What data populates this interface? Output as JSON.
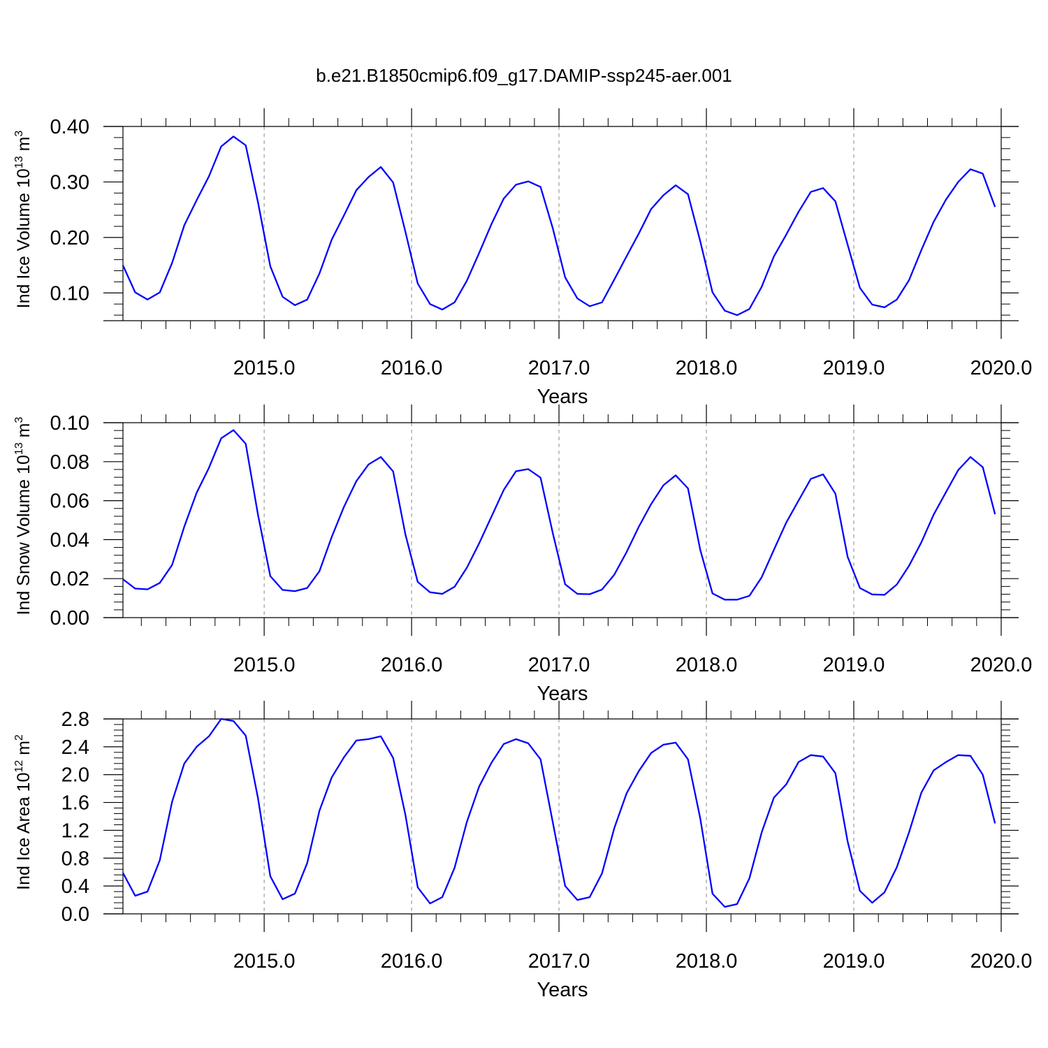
{
  "title": "b.e21.B1850cmip6.f09_g17.DAMIP-ssp245-aer.001",
  "chart_data": [
    {
      "type": "line",
      "title": "",
      "xlabel": "Years",
      "ylabel": "Ind Ice Volume 10",
      "ylabel_exp": "13",
      "ylabel_unit": " m",
      "ylabel_unit_exp": "3",
      "xlim": [
        2014.042,
        2020.0
      ],
      "ylim": [
        0.05,
        0.4
      ],
      "yticks": [
        "0.10",
        "0.20",
        "0.30",
        "0.40"
      ],
      "ytick_values": [
        0.1,
        0.2,
        0.3,
        0.4
      ],
      "xticks": [
        "2015.0",
        "2016.0",
        "2017.0",
        "2018.0",
        "2019.0",
        "2020.0"
      ],
      "xtick_values": [
        2015,
        2016,
        2017,
        2018,
        2019,
        2020
      ],
      "grid": "dashed vertical at years",
      "series": [
        {
          "color": "#0000ff",
          "y": [
            0.15,
            0.101,
            0.088,
            0.101,
            0.154,
            0.222,
            0.267,
            0.31,
            0.364,
            0.382,
            0.366,
            0.263,
            0.148,
            0.093,
            0.078,
            0.088,
            0.135,
            0.196,
            0.24,
            0.285,
            0.309,
            0.327,
            0.299,
            0.21,
            0.117,
            0.08,
            0.07,
            0.083,
            0.122,
            0.172,
            0.224,
            0.27,
            0.295,
            0.301,
            0.291,
            0.216,
            0.128,
            0.09,
            0.076,
            0.083,
            0.124,
            0.166,
            0.207,
            0.251,
            0.276,
            0.294,
            0.278,
            0.193,
            0.101,
            0.068,
            0.06,
            0.071,
            0.111,
            0.166,
            0.205,
            0.246,
            0.282,
            0.289,
            0.265,
            0.187,
            0.109,
            0.079,
            0.074,
            0.088,
            0.123,
            0.177,
            0.228,
            0.268,
            0.3,
            0.323,
            0.315,
            0.255
          ]
        }
      ]
    },
    {
      "type": "line",
      "title": "",
      "xlabel": "Years",
      "ylabel": "Ind Snow Volume 10",
      "ylabel_exp": "13",
      "ylabel_unit": " m",
      "ylabel_unit_exp": "3",
      "xlim": [
        2014.042,
        2020.0
      ],
      "ylim": [
        0.0,
        0.1
      ],
      "yticks": [
        "0.00",
        "0.02",
        "0.04",
        "0.06",
        "0.08",
        "0.10"
      ],
      "ytick_values": [
        0.0,
        0.02,
        0.04,
        0.06,
        0.08,
        0.1
      ],
      "xticks": [
        "2015.0",
        "2016.0",
        "2017.0",
        "2018.0",
        "2019.0",
        "2020.0"
      ],
      "xtick_values": [
        2015,
        2016,
        2017,
        2018,
        2019,
        2020
      ],
      "grid": "dashed vertical at years",
      "series": [
        {
          "color": "#0000ff",
          "y": [
            0.0197,
            0.0149,
            0.0145,
            0.0178,
            0.027,
            0.0467,
            0.064,
            0.0768,
            0.092,
            0.0962,
            0.0892,
            0.0527,
            0.0213,
            0.0142,
            0.0136,
            0.0152,
            0.0238,
            0.0414,
            0.0569,
            0.07,
            0.0786,
            0.0824,
            0.075,
            0.0426,
            0.0183,
            0.013,
            0.0122,
            0.0158,
            0.0256,
            0.0381,
            0.0518,
            0.0655,
            0.0751,
            0.0762,
            0.0718,
            0.0432,
            0.0171,
            0.0122,
            0.012,
            0.0144,
            0.022,
            0.0336,
            0.0466,
            0.0582,
            0.0679,
            0.073,
            0.0663,
            0.0347,
            0.0124,
            0.0092,
            0.0092,
            0.0112,
            0.0207,
            0.0348,
            0.0487,
            0.06,
            0.0712,
            0.0735,
            0.0636,
            0.0312,
            0.0152,
            0.0119,
            0.0117,
            0.017,
            0.0266,
            0.0386,
            0.0528,
            0.0643,
            0.0757,
            0.0824,
            0.0772,
            0.053
          ]
        }
      ]
    },
    {
      "type": "line",
      "title": "",
      "xlabel": "Years",
      "ylabel": "Ind Ice Area 10",
      "ylabel_exp": "12",
      "ylabel_unit": " m",
      "ylabel_unit_exp": "2",
      "xlim": [
        2014.042,
        2020.0
      ],
      "ylim": [
        0.0,
        2.8
      ],
      "yticks": [
        "0.0",
        "0.4",
        "0.8",
        "1.2",
        "1.6",
        "2.0",
        "2.4",
        "2.8"
      ],
      "ytick_values": [
        0.0,
        0.4,
        0.8,
        1.2,
        1.6,
        2.0,
        2.4,
        2.8
      ],
      "xticks": [
        "2015.0",
        "2016.0",
        "2017.0",
        "2018.0",
        "2019.0",
        "2020.0"
      ],
      "xtick_values": [
        2015,
        2016,
        2017,
        2018,
        2019,
        2020
      ],
      "grid": "dashed vertical at years",
      "series": [
        {
          "color": "#0000ff",
          "y": [
            0.59,
            0.26,
            0.32,
            0.77,
            1.61,
            2.16,
            2.4,
            2.55,
            2.8,
            2.77,
            2.56,
            1.66,
            0.54,
            0.21,
            0.29,
            0.73,
            1.48,
            1.96,
            2.25,
            2.49,
            2.51,
            2.55,
            2.24,
            1.42,
            0.38,
            0.15,
            0.24,
            0.66,
            1.32,
            1.83,
            2.17,
            2.44,
            2.51,
            2.45,
            2.22,
            1.31,
            0.4,
            0.2,
            0.24,
            0.58,
            1.23,
            1.73,
            2.05,
            2.31,
            2.43,
            2.46,
            2.22,
            1.37,
            0.29,
            0.1,
            0.14,
            0.51,
            1.17,
            1.67,
            1.86,
            2.18,
            2.28,
            2.26,
            2.02,
            1.04,
            0.33,
            0.16,
            0.31,
            0.67,
            1.17,
            1.74,
            2.06,
            2.18,
            2.28,
            2.27,
            2.0,
            1.3
          ]
        }
      ]
    }
  ]
}
